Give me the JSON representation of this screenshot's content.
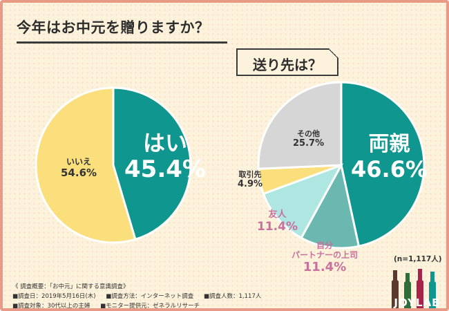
{
  "title": "今年はお中元を贈りますか？",
  "subtitle": "送り先は？",
  "chart_data": [
    {
      "type": "pie",
      "title": "今年はお中元を贈りますか？",
      "slices": [
        {
          "label": "はい",
          "value": 45.4,
          "pct": "45.4%",
          "color": "#0f978f"
        },
        {
          "label": "いいえ",
          "value": 54.6,
          "pct": "54.6%",
          "color": "#fbdf7d"
        }
      ]
    },
    {
      "type": "pie",
      "title": "送り先は？",
      "slices": [
        {
          "label": "両親",
          "value": 46.6,
          "pct": "46.6%",
          "color": "#0f978f"
        },
        {
          "label": "自分パートナーの上司",
          "value": 11.4,
          "pct": "11.4%",
          "color": "#6bb8b1"
        },
        {
          "label": "友人",
          "value": 11.4,
          "pct": "11.4%",
          "color": "#aee6e1"
        },
        {
          "label": "取引先",
          "value": 4.9,
          "pct": "4.9%",
          "color": "#fbdf7d"
        },
        {
          "label": "その他",
          "value": 25.7,
          "pct": "25.7%",
          "color": "#d6d6d6"
        }
      ]
    }
  ],
  "labels": {
    "yes_name": "はい",
    "yes_pct": "45.4%",
    "no_name": "いいえ",
    "no_pct": "54.6%",
    "parents_name": "両親",
    "parents_pct": "46.6%",
    "boss_name_1": "自分",
    "boss_name_2": "パートナーの上司",
    "boss_pct": "11.4%",
    "friend_name": "友人",
    "friend_pct": "11.4%",
    "client_name": "取引先",
    "client_pct": "4.9%",
    "other_name": "その他",
    "other_pct": "25.7%"
  },
  "sample": "(n=1,117人)",
  "notes": {
    "heading": "《 調査概要：「お中元」に関する意識調査》",
    "date": "■調査日：2019年5月16日(木)",
    "method": "■調査方法：インターネット調査",
    "count": "■調査人数：1,117人",
    "target": "■調査対象：30代以上の主婦",
    "provider": "■モニター提供元：ゼネラルリサーチ"
  },
  "logo_text": "JOYLAB"
}
